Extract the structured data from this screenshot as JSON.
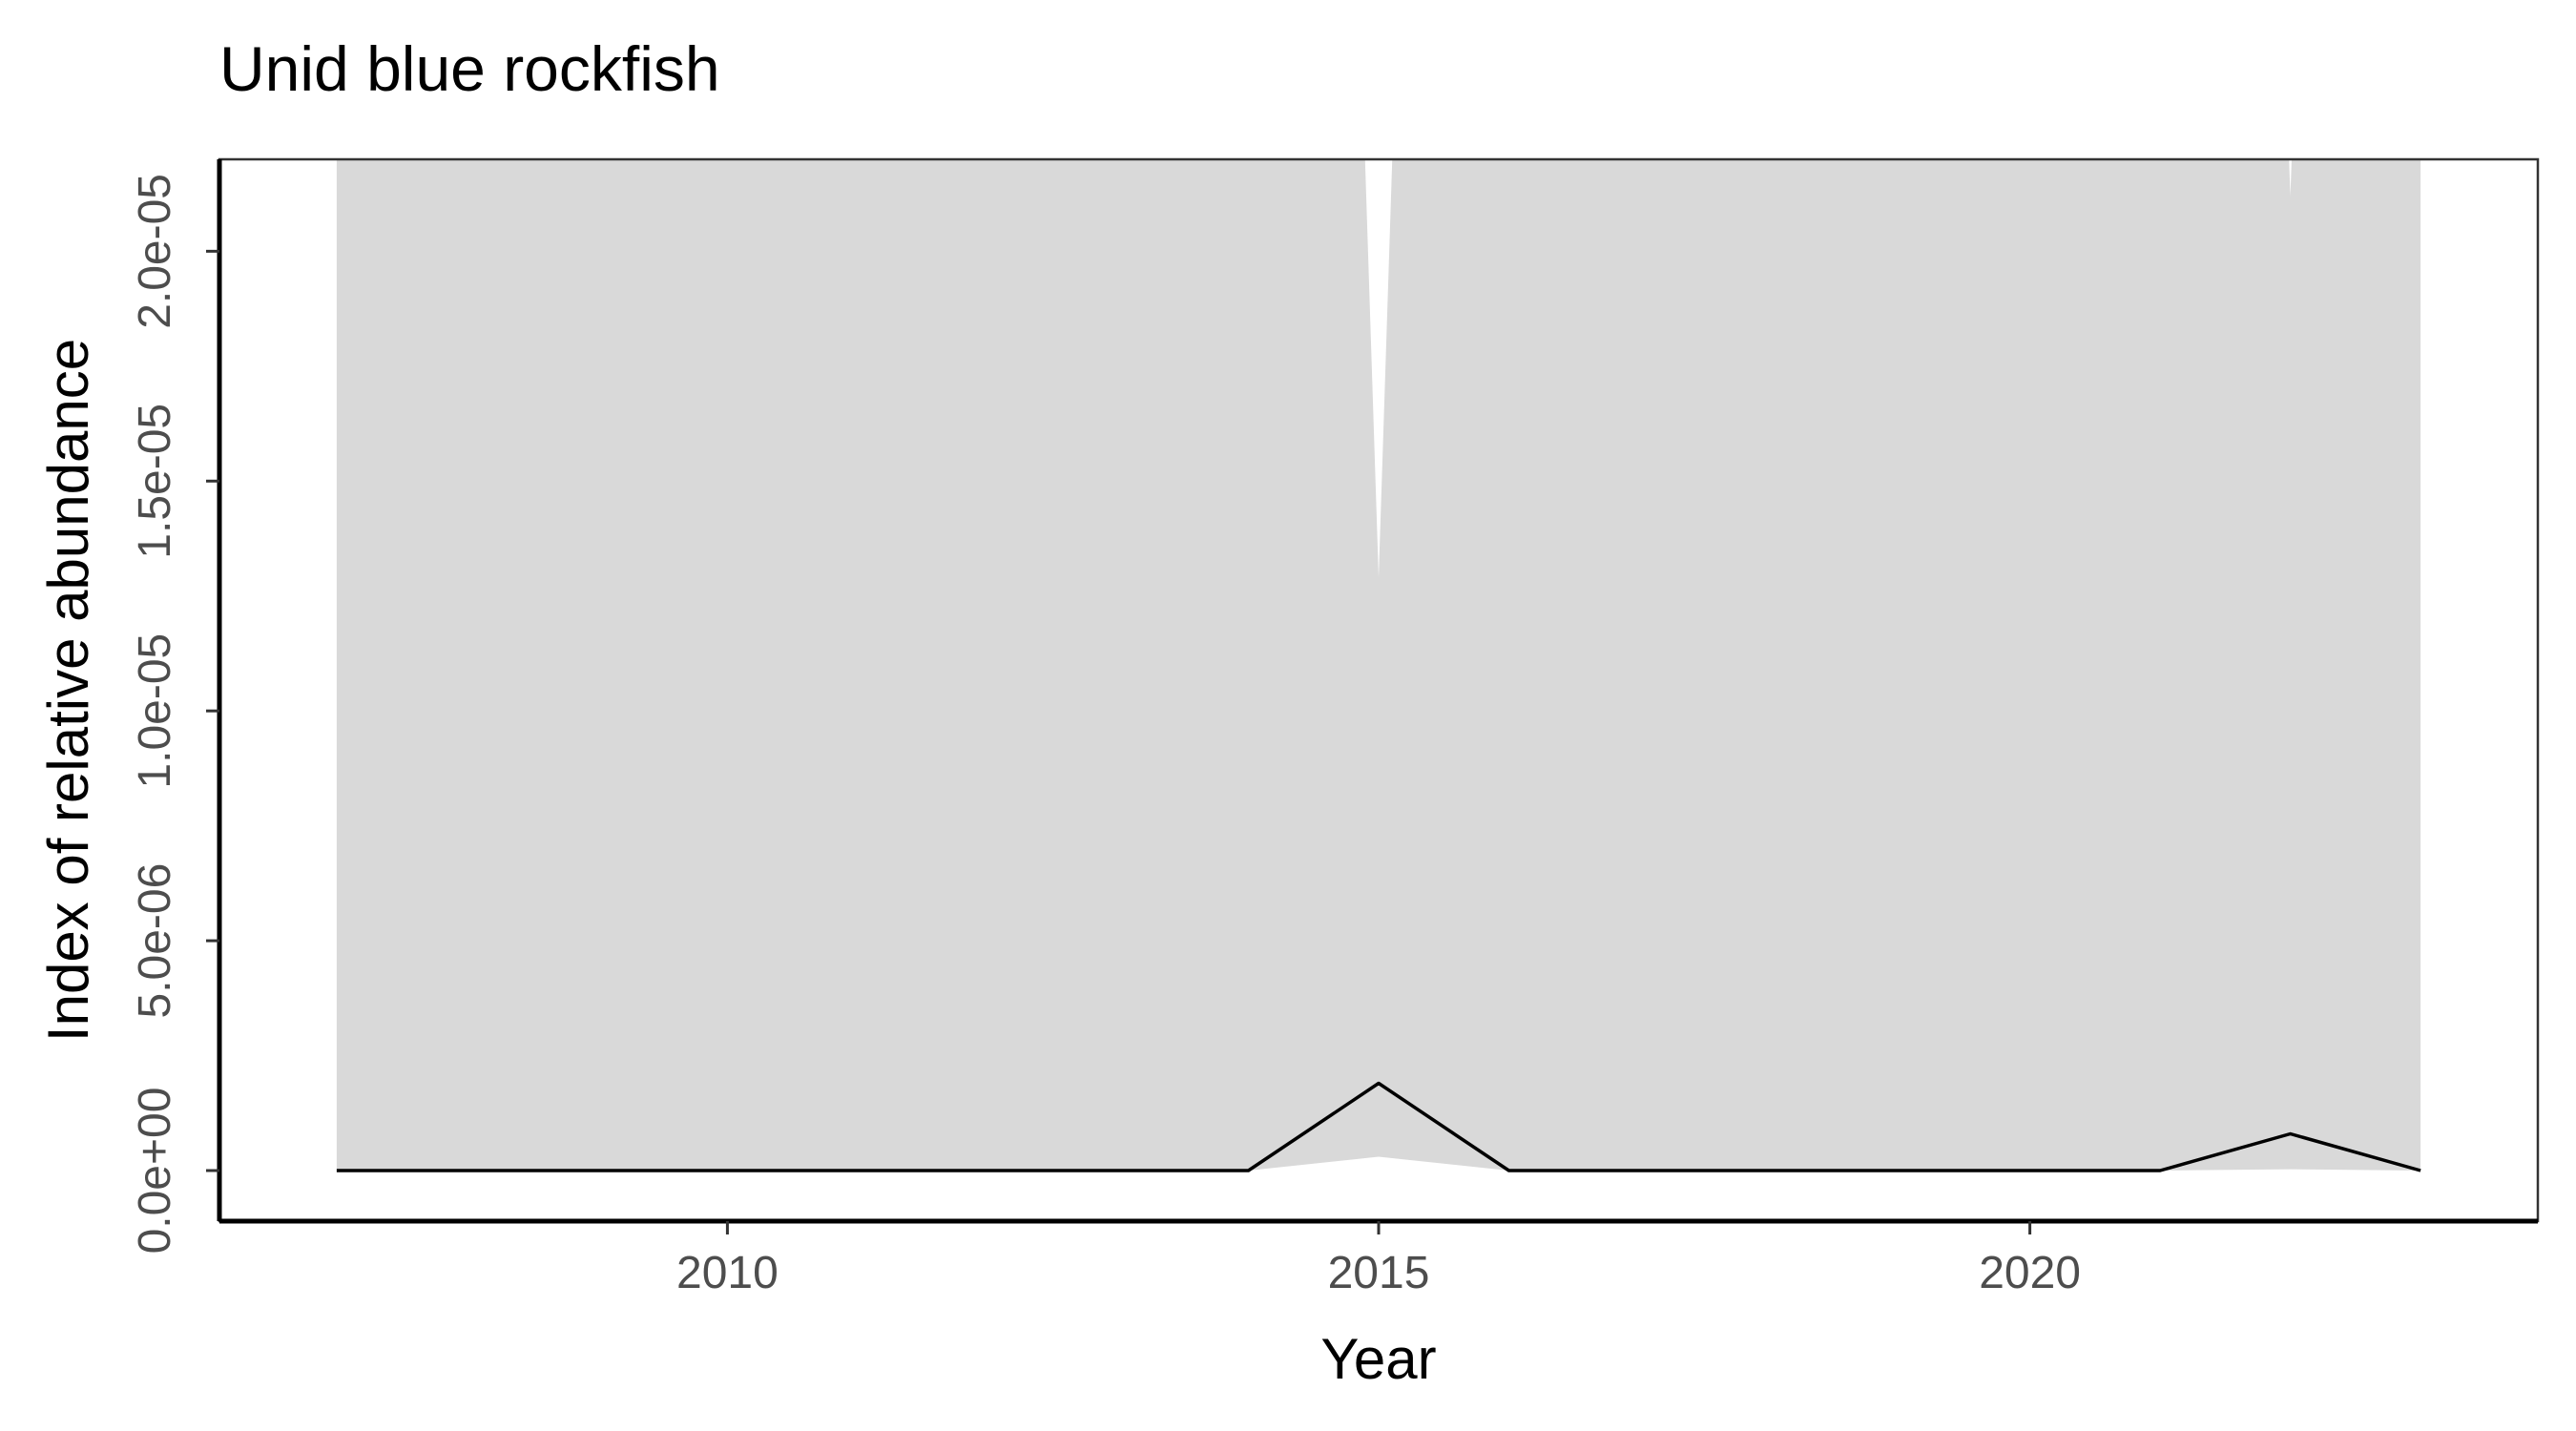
{
  "chart_data": {
    "type": "area",
    "title": "Unid blue rockfish",
    "xlabel": "Year",
    "ylabel": "Index of relative abundance",
    "xlim": [
      2006.1,
      2023.9
    ],
    "ylim": [
      -1.1e-06,
      2.2e-05
    ],
    "x_ticks": [
      2010,
      2015,
      2020
    ],
    "x_tick_labels": [
      "2010",
      "2015",
      "2020"
    ],
    "y_ticks": [
      0,
      5e-06,
      1e-05,
      1.5e-05,
      2e-05
    ],
    "y_tick_labels": [
      "0.0e+00",
      "5.0e-06",
      "1.0e-05",
      "1.5e-05",
      "2.0e-05"
    ],
    "grid": false,
    "x": [
      2007,
      2008,
      2009,
      2010,
      2011,
      2012,
      2013,
      2014,
      2015,
      2016,
      2017,
      2018,
      2019,
      2020,
      2021,
      2022,
      2023
    ],
    "series": [
      {
        "type": "line",
        "values": [
          0,
          0,
          0,
          0,
          0,
          0,
          0,
          0,
          1.9e-06,
          0,
          0,
          0,
          0,
          0,
          0,
          8e-07,
          0
        ]
      }
    ],
    "ribbon": {
      "lower": [
        0,
        0,
        0,
        0,
        0,
        0,
        0,
        0,
        3e-07,
        0,
        0,
        0,
        0,
        0,
        0,
        3e-08,
        0
      ],
      "upper": [
        0.0001,
        0.0001,
        0.0001,
        0.0001,
        0.0001,
        0.0001,
        0.0001,
        0.0001,
        1.29e-05,
        0.0001,
        0.0001,
        0.0001,
        0.0001,
        0.0001,
        0.0001,
        2.12e-05,
        0.0001
      ]
    },
    "colors": {
      "ribbon": "#d9d9d9",
      "line": "#000000",
      "panel_border": "#333333",
      "tick_text": "#4d4d4d"
    }
  }
}
